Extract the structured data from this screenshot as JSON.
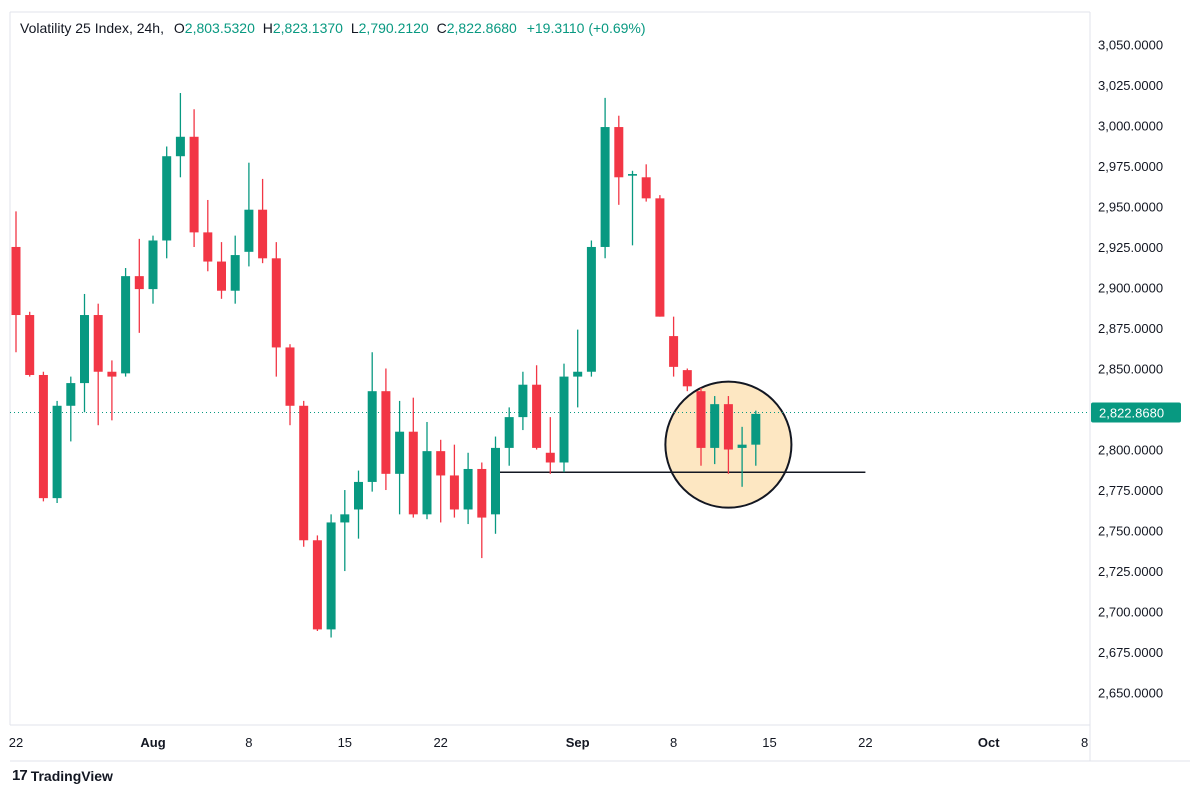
{
  "header": {
    "symbol": "Volatility 25 Index, 24h,",
    "open_label": "O",
    "open": "2,803.5320",
    "high_label": "H",
    "high": "2,823.1370",
    "low_label": "L",
    "low": "2,790.2120",
    "close_label": "C",
    "close": "2,822.8680",
    "change": "+19.3110 (+0.69%)"
  },
  "brand": {
    "icon": "17",
    "name": "TradingView"
  },
  "colors": {
    "up": "#089981",
    "down": "#f23645",
    "highlight_fill": "#fde7c2",
    "line": "#131722"
  },
  "chart_data": {
    "type": "candlestick",
    "ylim": [
      2630,
      3070
    ],
    "y_ticks": [
      "3,050.0000",
      "3,025.0000",
      "3,000.0000",
      "2,975.0000",
      "2,950.0000",
      "2,925.0000",
      "2,900.0000",
      "2,875.0000",
      "2,850.0000",
      "2,825.0000",
      "2,800.0000",
      "2,775.0000",
      "2,750.0000",
      "2,725.0000",
      "2,700.0000",
      "2,675.0000",
      "2,650.0000"
    ],
    "y_tick_values": [
      3050,
      3025,
      3000,
      2975,
      2950,
      2925,
      2900,
      2875,
      2850,
      2825,
      2800,
      2775,
      2750,
      2725,
      2700,
      2675,
      2650
    ],
    "x_ticks": [
      {
        "day": "2024-07-22",
        "label": "22"
      },
      {
        "day": "2024-08-01",
        "label": "Aug"
      },
      {
        "day": "2024-08-08",
        "label": "8"
      },
      {
        "day": "2024-08-15",
        "label": "15"
      },
      {
        "day": "2024-08-22",
        "label": "22"
      },
      {
        "day": "2024-09-01",
        "label": "Sep"
      },
      {
        "day": "2024-09-08",
        "label": "8"
      },
      {
        "day": "2024-09-15",
        "label": "15"
      },
      {
        "day": "2024-09-22",
        "label": "22"
      },
      {
        "day": "2024-10-01",
        "label": "Oct"
      },
      {
        "day": "2024-10-08",
        "label": "8"
      }
    ],
    "last_price": 2822.868,
    "last_price_label": "2,822.8680",
    "support_level": 2786,
    "support_from": "2024-08-26",
    "support_to": "2024-09-22",
    "highlight": {
      "center": "2024-09-12",
      "price": 2803,
      "radius_days": 4.6
    },
    "candles": [
      {
        "date": "2024-07-22",
        "o": 2925,
        "h": 2947,
        "l": 2860,
        "c": 2883
      },
      {
        "date": "2024-07-23",
        "o": 2883,
        "h": 2885,
        "l": 2845,
        "c": 2846
      },
      {
        "date": "2024-07-24",
        "o": 2846,
        "h": 2848,
        "l": 2768,
        "c": 2770
      },
      {
        "date": "2024-07-25",
        "o": 2770,
        "h": 2830,
        "l": 2767,
        "c": 2827
      },
      {
        "date": "2024-07-26",
        "o": 2827,
        "h": 2845,
        "l": 2805,
        "c": 2841
      },
      {
        "date": "2024-07-27",
        "o": 2841,
        "h": 2896,
        "l": 2823,
        "c": 2883
      },
      {
        "date": "2024-07-28",
        "o": 2883,
        "h": 2890,
        "l": 2815,
        "c": 2848
      },
      {
        "date": "2024-07-29",
        "o": 2848,
        "h": 2855,
        "l": 2818,
        "c": 2845
      },
      {
        "date": "2024-07-30",
        "o": 2847,
        "h": 2912,
        "l": 2845,
        "c": 2907
      },
      {
        "date": "2024-07-31",
        "o": 2907,
        "h": 2930,
        "l": 2872,
        "c": 2899
      },
      {
        "date": "2024-08-01",
        "o": 2899,
        "h": 2932,
        "l": 2890,
        "c": 2929
      },
      {
        "date": "2024-08-02",
        "o": 2929,
        "h": 2987,
        "l": 2918,
        "c": 2981
      },
      {
        "date": "2024-08-03",
        "o": 2981,
        "h": 3020,
        "l": 2968,
        "c": 2993
      },
      {
        "date": "2024-08-04",
        "o": 2993,
        "h": 3010,
        "l": 2925,
        "c": 2934
      },
      {
        "date": "2024-08-05",
        "o": 2934,
        "h": 2954,
        "l": 2910,
        "c": 2916
      },
      {
        "date": "2024-08-06",
        "o": 2916,
        "h": 2928,
        "l": 2893,
        "c": 2898
      },
      {
        "date": "2024-08-07",
        "o": 2898,
        "h": 2932,
        "l": 2890,
        "c": 2920
      },
      {
        "date": "2024-08-08",
        "o": 2922,
        "h": 2977,
        "l": 2913,
        "c": 2948
      },
      {
        "date": "2024-08-09",
        "o": 2948,
        "h": 2967,
        "l": 2915,
        "c": 2918
      },
      {
        "date": "2024-08-10",
        "o": 2918,
        "h": 2928,
        "l": 2845,
        "c": 2863
      },
      {
        "date": "2024-08-11",
        "o": 2863,
        "h": 2865,
        "l": 2815,
        "c": 2827
      },
      {
        "date": "2024-08-12",
        "o": 2827,
        "h": 2830,
        "l": 2740,
        "c": 2744
      },
      {
        "date": "2024-08-13",
        "o": 2744,
        "h": 2747,
        "l": 2688,
        "c": 2689
      },
      {
        "date": "2024-08-14",
        "o": 2689,
        "h": 2760,
        "l": 2684,
        "c": 2755
      },
      {
        "date": "2024-08-15",
        "o": 2755,
        "h": 2775,
        "l": 2725,
        "c": 2760
      },
      {
        "date": "2024-08-16",
        "o": 2763,
        "h": 2787,
        "l": 2745,
        "c": 2780
      },
      {
        "date": "2024-08-17",
        "o": 2780,
        "h": 2860,
        "l": 2774,
        "c": 2836
      },
      {
        "date": "2024-08-18",
        "o": 2836,
        "h": 2850,
        "l": 2775,
        "c": 2785
      },
      {
        "date": "2024-08-19",
        "o": 2785,
        "h": 2830,
        "l": 2760,
        "c": 2811
      },
      {
        "date": "2024-08-20",
        "o": 2811,
        "h": 2832,
        "l": 2758,
        "c": 2760
      },
      {
        "date": "2024-08-21",
        "o": 2760,
        "h": 2817,
        "l": 2757,
        "c": 2799
      },
      {
        "date": "2024-08-22",
        "o": 2799,
        "h": 2806,
        "l": 2755,
        "c": 2784
      },
      {
        "date": "2024-08-23",
        "o": 2784,
        "h": 2803,
        "l": 2758,
        "c": 2763
      },
      {
        "date": "2024-08-24",
        "o": 2763,
        "h": 2798,
        "l": 2754,
        "c": 2788
      },
      {
        "date": "2024-08-25",
        "o": 2788,
        "h": 2792,
        "l": 2733,
        "c": 2758
      },
      {
        "date": "2024-08-26",
        "o": 2760,
        "h": 2808,
        "l": 2748,
        "c": 2801
      },
      {
        "date": "2024-08-27",
        "o": 2801,
        "h": 2826,
        "l": 2790,
        "c": 2820
      },
      {
        "date": "2024-08-28",
        "o": 2820,
        "h": 2848,
        "l": 2812,
        "c": 2840
      },
      {
        "date": "2024-08-29",
        "o": 2840,
        "h": 2852,
        "l": 2800,
        "c": 2801
      },
      {
        "date": "2024-08-30",
        "o": 2798,
        "h": 2820,
        "l": 2785,
        "c": 2792
      },
      {
        "date": "2024-08-31",
        "o": 2792,
        "h": 2853,
        "l": 2786,
        "c": 2845
      },
      {
        "date": "2024-09-01",
        "o": 2845,
        "h": 2874,
        "l": 2826,
        "c": 2848
      },
      {
        "date": "2024-09-02",
        "o": 2848,
        "h": 2929,
        "l": 2845,
        "c": 2925
      },
      {
        "date": "2024-09-03",
        "o": 2925,
        "h": 3017,
        "l": 2918,
        "c": 2999
      },
      {
        "date": "2024-09-04",
        "o": 2999,
        "h": 3006,
        "l": 2951,
        "c": 2968
      },
      {
        "date": "2024-09-05",
        "o": 2969,
        "h": 2972,
        "l": 2926,
        "c": 2970
      },
      {
        "date": "2024-09-06",
        "o": 2968,
        "h": 2976,
        "l": 2953,
        "c": 2955
      },
      {
        "date": "2024-09-07",
        "o": 2955,
        "h": 2957,
        "l": 2882,
        "c": 2882
      },
      {
        "date": "2024-09-08",
        "o": 2870,
        "h": 2882,
        "l": 2845,
        "c": 2851
      },
      {
        "date": "2024-09-09",
        "o": 2849,
        "h": 2850,
        "l": 2836,
        "c": 2839
      },
      {
        "date": "2024-09-10",
        "o": 2836,
        "h": 2838,
        "l": 2790,
        "c": 2801
      },
      {
        "date": "2024-09-11",
        "o": 2801,
        "h": 2833,
        "l": 2791,
        "c": 2828
      },
      {
        "date": "2024-09-12",
        "o": 2828,
        "h": 2833,
        "l": 2785,
        "c": 2800
      },
      {
        "date": "2024-09-13",
        "o": 2801,
        "h": 2814,
        "l": 2777,
        "c": 2803
      },
      {
        "date": "2024-09-14",
        "o": 2803,
        "h": 2824,
        "l": 2790,
        "c": 2822
      }
    ]
  }
}
